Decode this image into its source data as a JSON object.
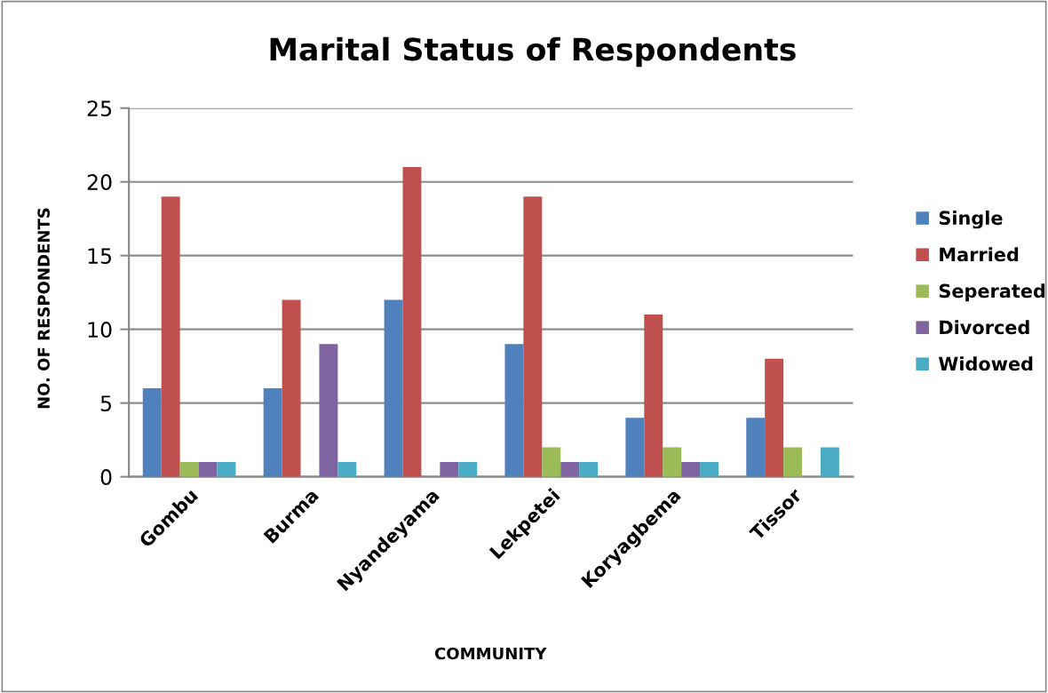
{
  "chart_data": {
    "type": "bar",
    "title": "Marital Status of Respondents",
    "xlabel": "COMMUNITY",
    "ylabel": "NO. OF RESPONDENTS",
    "categories": [
      "Gombu",
      "Burma",
      "Nyandeyama",
      "Lekpetei",
      "Koryagbema",
      "Tissor"
    ],
    "series": [
      {
        "name": "Single",
        "color": "#4f81bd",
        "values": [
          6,
          6,
          12,
          9,
          4,
          4
        ]
      },
      {
        "name": "Married",
        "color": "#c0504d",
        "values": [
          19,
          12,
          21,
          19,
          11,
          8
        ]
      },
      {
        "name": "Seperated",
        "color": "#9bbb59",
        "values": [
          1,
          0,
          0,
          2,
          2,
          2
        ]
      },
      {
        "name": "Divorced",
        "color": "#8064a2",
        "values": [
          1,
          9,
          1,
          1,
          1,
          0
        ]
      },
      {
        "name": "Widowed",
        "color": "#4bacc6",
        "values": [
          1,
          1,
          1,
          1,
          1,
          2
        ]
      }
    ],
    "ylim": [
      0,
      25
    ],
    "yticks": [
      0,
      5,
      10,
      15,
      20,
      25
    ],
    "grid": "y",
    "legend": "right"
  }
}
